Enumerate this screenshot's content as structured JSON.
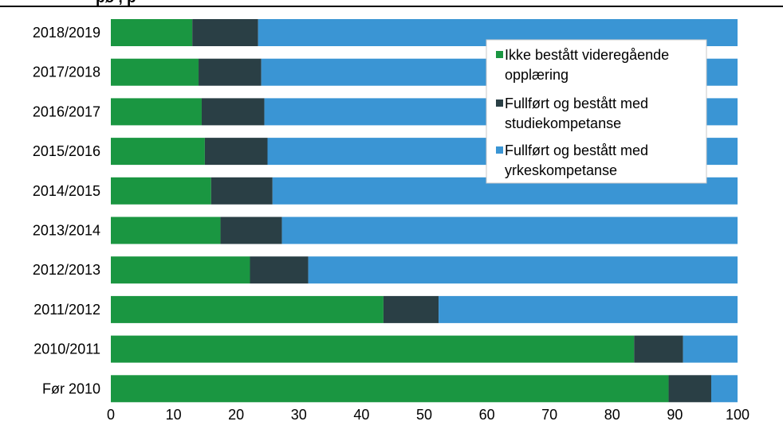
{
  "chart_data": {
    "type": "bar",
    "orientation": "horizontal",
    "stacked": true,
    "title": "",
    "title_fragment_visible": "    pø   ,       p",
    "xlabel": "",
    "ylabel": "",
    "xlim": [
      0,
      100
    ],
    "xticks": [
      "0",
      "10",
      "20",
      "30",
      "40",
      "50",
      "60",
      "70",
      "80",
      "90",
      "100"
    ],
    "categories": [
      "2018/2019",
      "2017/2018",
      "2016/2017",
      "2015/2016",
      "2014/2015",
      "2013/2014",
      "2012/2013",
      "2011/2012",
      "2010/2011",
      "Før 2010"
    ],
    "series": [
      {
        "name": "Ikke bestått videregående opplæring",
        "legend_lines": [
          "Ikke bestått videregående",
          "opplæring"
        ],
        "color": "#1a9641",
        "values": [
          13.0,
          14.0,
          14.5,
          15.0,
          16.0,
          17.5,
          22.2,
          43.5,
          83.5,
          89.0
        ]
      },
      {
        "name": "Fullført og bestått med studiekompetanse",
        "legend_lines": [
          "Fullført og bestått med",
          "studiekompetanse"
        ],
        "color": "#2a3f45",
        "values": [
          10.5,
          10.0,
          10.0,
          10.0,
          9.8,
          9.8,
          9.3,
          8.8,
          7.8,
          6.8
        ]
      },
      {
        "name": "Fullført og bestått med yrkeskompetanse",
        "legend_lines": [
          "Fullført og bestått med",
          "yrkeskompetanse"
        ],
        "color": "#3a95d4",
        "values": [
          76.5,
          76.0,
          75.5,
          75.0,
          74.2,
          72.7,
          68.5,
          47.7,
          8.7,
          4.2
        ]
      }
    ],
    "grid": false,
    "legend": "top-right"
  }
}
